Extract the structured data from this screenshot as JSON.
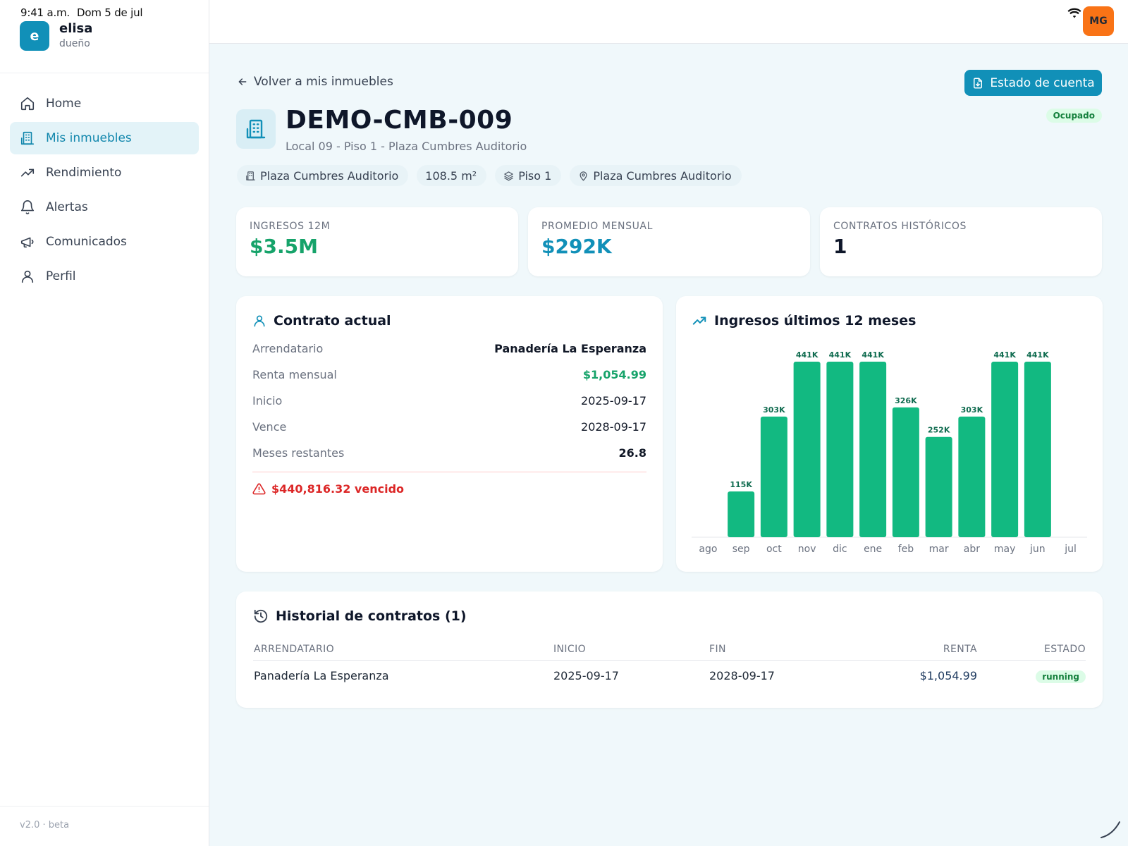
{
  "status_bar": {
    "time": "9:41 a.m.",
    "date": "Dom 5 de jul"
  },
  "user": {
    "initial": "e",
    "name": "elisa",
    "role": "dueño",
    "avatar_initials": "MG"
  },
  "nav": [
    {
      "label": "Home",
      "icon": "home-icon",
      "active": false
    },
    {
      "label": "Mis inmuebles",
      "icon": "building-icon",
      "active": true
    },
    {
      "label": "Rendimiento",
      "icon": "trending-up-icon",
      "active": false
    },
    {
      "label": "Alertas",
      "icon": "bell-icon",
      "active": false
    },
    {
      "label": "Comunicados",
      "icon": "megaphone-icon",
      "active": false
    },
    {
      "label": "Perfil",
      "icon": "user-icon",
      "active": false
    }
  ],
  "version": "v2.0 · beta",
  "header": {
    "back_label": "Volver a mis inmuebles",
    "statement_button": "Estado de cuenta",
    "status_badge": "Ocupado",
    "title": "DEMO-CMB-009",
    "subtitle": "Local 09 - Piso 1 - Plaza Cumbres Auditorio",
    "chips": {
      "building": "Plaza Cumbres Auditorio",
      "area": "108.5 m²",
      "floor": "Piso 1",
      "location": "Plaza Cumbres Auditorio"
    }
  },
  "stats": [
    {
      "label": "INGRESOS 12M",
      "value": "$3.5M",
      "color": "#16a36a"
    },
    {
      "label": "PROMEDIO MENSUAL",
      "value": "$292K",
      "color": "#1190b8"
    },
    {
      "label": "CONTRATOS HISTÓRICOS",
      "value": "1",
      "color": "#0f172a"
    }
  ],
  "contract": {
    "title": "Contrato actual",
    "rows": [
      {
        "label": "Arrendatario",
        "value": "Panadería La Esperanza"
      },
      {
        "label": "Renta mensual",
        "value": "$1,054.99"
      },
      {
        "label": "Inicio",
        "value": "2025-09-17"
      },
      {
        "label": "Vence",
        "value": "2028-09-17"
      },
      {
        "label": "Meses restantes",
        "value": "26.8"
      }
    ],
    "overdue": "$440,816.32 vencido"
  },
  "chart_data": {
    "type": "bar",
    "title": "Ingresos últimos 12 meses",
    "categories": [
      "ago",
      "sep",
      "oct",
      "nov",
      "dic",
      "ene",
      "feb",
      "mar",
      "abr",
      "may",
      "jun",
      "jul"
    ],
    "values": [
      0,
      115,
      303,
      441,
      441,
      441,
      326,
      252,
      303,
      441,
      441,
      0
    ],
    "labels": [
      "",
      "115K",
      "303K",
      "441K",
      "441K",
      "441K",
      "326K",
      "252K",
      "303K",
      "441K",
      "441K",
      ""
    ],
    "unit": "K",
    "bar_color": "#12b981",
    "grid": false,
    "legend": "none"
  },
  "history": {
    "title": "Historial de contratos (1)",
    "columns": [
      "ARRENDATARIO",
      "INICIO",
      "FIN",
      "RENTA",
      "ESTADO"
    ],
    "rows": [
      {
        "tenant": "Panadería La Esperanza",
        "start": "2025-09-17",
        "end": "2028-09-17",
        "rent": "$1,054.99",
        "status": "running"
      }
    ]
  }
}
